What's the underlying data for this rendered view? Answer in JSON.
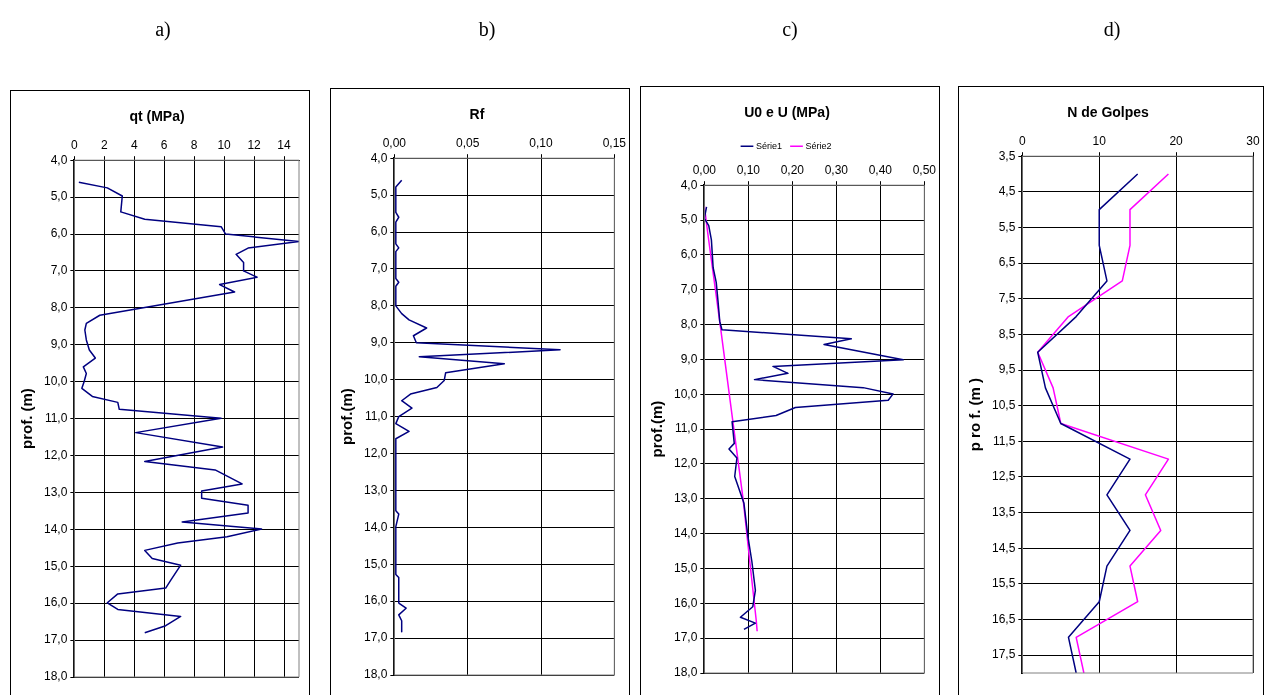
{
  "chart_data": [
    {
      "type": "line",
      "title": "qt (MPa)",
      "ylabel": "prof. (m)",
      "annotations": [
        "a)"
      ],
      "xlim": [
        0,
        15
      ],
      "xticks": [
        0,
        2,
        4,
        6,
        8,
        10,
        12,
        14
      ],
      "ylim": [
        18,
        4
      ],
      "yticks": [
        {
          "value": 4,
          "label": "4,0"
        },
        {
          "value": 5,
          "label": "5,0"
        },
        {
          "value": 6,
          "label": "6,0"
        },
        {
          "value": 7,
          "label": "7,0"
        },
        {
          "value": 8,
          "label": "8,0"
        },
        {
          "value": 9,
          "label": "9,0"
        },
        {
          "value": 10,
          "label": "10,0"
        },
        {
          "value": 11,
          "label": "11,0"
        },
        {
          "value": 12,
          "label": "12,0"
        },
        {
          "value": 13,
          "label": "13,0"
        },
        {
          "value": 14,
          "label": "14,0"
        },
        {
          "value": 15,
          "label": "15,0"
        },
        {
          "value": 16,
          "label": "16,0"
        },
        {
          "value": 17,
          "label": "17,0"
        },
        {
          "value": 18,
          "label": "18,0"
        }
      ],
      "grid": true,
      "marker": "none",
      "series": [
        {
          "color": "#000080",
          "x": [
            0.3,
            2.2,
            3.2,
            3.1,
            4.7,
            9.8,
            10.1,
            15.0,
            11.6,
            10.8,
            11.3,
            11.3,
            12.2,
            9.7,
            10.7,
            1.7,
            0.8,
            0.7,
            0.8,
            1.0,
            1.4,
            0.6,
            0.8,
            0.65,
            0.5,
            1.2,
            2.9,
            3.0,
            9.8,
            4.1,
            9.9,
            4.7,
            9.4,
            11.2,
            8.5,
            8.5,
            11.6,
            11.6,
            7.2,
            12.5,
            10.2,
            6.9,
            4.7,
            5.2,
            7.1,
            6.45,
            6.1,
            2.9,
            2.2,
            2.9,
            7.1,
            6.1,
            4.7
          ],
          "values": [
            4.6,
            4.75,
            4.97,
            5.4,
            5.6,
            5.8,
            6.0,
            6.2,
            6.38,
            6.55,
            6.77,
            7.0,
            7.17,
            7.37,
            7.57,
            8.2,
            8.42,
            8.6,
            8.87,
            9.14,
            9.36,
            9.6,
            9.78,
            10.0,
            10.18,
            10.4,
            10.56,
            10.75,
            10.99,
            11.38,
            11.77,
            12.16,
            12.39,
            12.77,
            12.96,
            13.16,
            13.35,
            13.56,
            13.8,
            13.99,
            14.2,
            14.37,
            14.57,
            14.79,
            14.97,
            15.37,
            15.59,
            15.75,
            15.99,
            16.17,
            16.36,
            16.61,
            16.8
          ]
        }
      ]
    },
    {
      "type": "line",
      "title": "Rf",
      "ylabel": "prof.(m)",
      "annotations": [
        "b)"
      ],
      "xlim": [
        0,
        0.15
      ],
      "xticks": [
        {
          "value": 0,
          "label": "0,00"
        },
        {
          "value": 0.05,
          "label": "0,05"
        },
        {
          "value": 0.1,
          "label": "0,10"
        },
        {
          "value": 0.15,
          "label": "0,15"
        }
      ],
      "ylim": [
        18,
        4
      ],
      "yticks": [
        {
          "value": 4,
          "label": "4,0"
        },
        {
          "value": 5,
          "label": "5,0"
        },
        {
          "value": 6,
          "label": "6,0"
        },
        {
          "value": 7,
          "label": "7,0"
        },
        {
          "value": 8,
          "label": "8,0"
        },
        {
          "value": 9,
          "label": "9,0"
        },
        {
          "value": 10,
          "label": "10,0"
        },
        {
          "value": 11,
          "label": "11,0"
        },
        {
          "value": 12,
          "label": "12,0"
        },
        {
          "value": 13,
          "label": "13,0"
        },
        {
          "value": 14,
          "label": "14,0"
        },
        {
          "value": 15,
          "label": "15,0"
        },
        {
          "value": 16,
          "label": "16,0"
        },
        {
          "value": 17,
          "label": "17,0"
        },
        {
          "value": 18,
          "label": "18,0"
        }
      ],
      "grid": true,
      "marker": "none",
      "series": [
        {
          "color": "#000080",
          "x": [
            0.005,
            0.001,
            0.001,
            0.003,
            0.001,
            0.001,
            0.003,
            0.001,
            0.001,
            0.003,
            0.001,
            0.001,
            0.005,
            0.01,
            0.022,
            0.013,
            0.015,
            0.113,
            0.017,
            0.075,
            0.035,
            0.034,
            0.029,
            0.011,
            0.005,
            0.012,
            0.003,
            0.001,
            0.01,
            0.001,
            0.001,
            0.003,
            0.001,
            0.001,
            0.003,
            0.003,
            0.008,
            0.003,
            0.005,
            0.005
          ],
          "values": [
            4.6,
            4.78,
            5.47,
            5.6,
            5.73,
            6.32,
            6.43,
            6.53,
            7.26,
            7.36,
            7.47,
            8.0,
            8.21,
            8.38,
            8.6,
            8.81,
            9.0,
            9.19,
            9.38,
            9.57,
            9.81,
            10.02,
            10.21,
            10.39,
            10.57,
            10.77,
            11.0,
            11.19,
            11.4,
            11.6,
            13.55,
            13.64,
            13.98,
            15.28,
            15.36,
            16.05,
            16.19,
            16.37,
            16.53,
            16.83
          ]
        }
      ]
    },
    {
      "type": "line",
      "title": "U0 e U (MPa)",
      "ylabel": "prof.(m)",
      "annotations": [
        "c)"
      ],
      "legend": "top",
      "xlim": [
        0,
        0.5
      ],
      "xticks": [
        {
          "value": 0,
          "label": "0,00"
        },
        {
          "value": 0.1,
          "label": "0,10"
        },
        {
          "value": 0.2,
          "label": "0,20"
        },
        {
          "value": 0.3,
          "label": "0,30"
        },
        {
          "value": 0.4,
          "label": "0,40"
        },
        {
          "value": 0.5,
          "label": "0,50"
        }
      ],
      "ylim": [
        18,
        4
      ],
      "yticks": [
        {
          "value": 4,
          "label": "4,0"
        },
        {
          "value": 5,
          "label": "5,0"
        },
        {
          "value": 6,
          "label": "6,0"
        },
        {
          "value": 7,
          "label": "7,0"
        },
        {
          "value": 8,
          "label": "8,0"
        },
        {
          "value": 9,
          "label": "9,0"
        },
        {
          "value": 10,
          "label": "10,0"
        },
        {
          "value": 11,
          "label": "11,0"
        },
        {
          "value": 12,
          "label": "12,0"
        },
        {
          "value": 13,
          "label": "13,0"
        },
        {
          "value": 14,
          "label": "14,0"
        },
        {
          "value": 15,
          "label": "15,0"
        },
        {
          "value": 16,
          "label": "16,0"
        },
        {
          "value": 17,
          "label": "17,0"
        },
        {
          "value": 18,
          "label": "18,0"
        }
      ],
      "grid": true,
      "marker": "none",
      "series": [
        {
          "name": "Série1",
          "color": "#000080",
          "x": [
            0.005,
            0.0,
            0.01,
            0.016,
            0.02,
            0.027,
            0.031,
            0.035,
            0.04,
            0.334,
            0.272,
            0.452,
            0.156,
            0.19,
            0.114,
            0.361,
            0.429,
            0.418,
            0.207,
            0.163,
            0.063,
            0.068,
            0.056,
            0.074,
            0.069,
            0.09,
            0.099,
            0.108,
            0.116,
            0.11,
            0.082,
            0.116,
            0.09
          ],
          "values": [
            4.62,
            4.95,
            5.16,
            5.57,
            6.37,
            6.79,
            7.32,
            7.91,
            8.15,
            8.41,
            8.57,
            9.01,
            9.2,
            9.4,
            9.58,
            9.81,
            9.99,
            10.17,
            10.38,
            10.61,
            10.79,
            11.41,
            11.57,
            11.83,
            12.36,
            13.13,
            14.08,
            14.8,
            15.63,
            16.1,
            16.4,
            16.57,
            16.75
          ]
        },
        {
          "name": "Série2",
          "color": "#ff00ff",
          "x": [
            0.0,
            0.008,
            0.038,
            0.065,
            0.088,
            0.105,
            0.118,
            0.12
          ],
          "values": [
            4.6,
            5.4,
            8.2,
            10.8,
            13.0,
            15.0,
            16.5,
            16.8
          ]
        }
      ]
    },
    {
      "type": "line",
      "title": "N de Golpes",
      "ylabel": "p ro f. (m )",
      "annotations": [
        "d)"
      ],
      "xlim": [
        0,
        30
      ],
      "xticks": [
        0,
        10,
        20,
        30
      ],
      "ylim": [
        18,
        3.5
      ],
      "yticks": [
        {
          "value": 3.5,
          "label": "3,5"
        },
        {
          "value": 4.5,
          "label": "4,5"
        },
        {
          "value": 5.5,
          "label": "5,5"
        },
        {
          "value": 6.5,
          "label": "6,5"
        },
        {
          "value": 7.5,
          "label": "7,5"
        },
        {
          "value": 8.5,
          "label": "8,5"
        },
        {
          "value": 9.5,
          "label": "9,5"
        },
        {
          "value": 10.5,
          "label": "10,5"
        },
        {
          "value": 11.5,
          "label": "11,5"
        },
        {
          "value": 12.5,
          "label": "12,5"
        },
        {
          "value": 13.5,
          "label": "13,5"
        },
        {
          "value": 14.5,
          "label": "14,5"
        },
        {
          "value": 15.5,
          "label": "15,5"
        },
        {
          "value": 16.5,
          "label": "16,5"
        },
        {
          "value": 17.5,
          "label": "17,5"
        }
      ],
      "grid": true,
      "marker": "none",
      "series": [
        {
          "color": "#000080",
          "x": [
            15,
            10,
            10,
            11,
            7,
            2,
            3,
            5,
            14,
            11,
            14,
            11,
            10,
            6,
            7
          ],
          "values": [
            4,
            5,
            6,
            7,
            8,
            9,
            10,
            11,
            12,
            13,
            14,
            15,
            16,
            17,
            18
          ]
        },
        {
          "color": "#ff00ff",
          "x": [
            19,
            14,
            14,
            13,
            6,
            2,
            4,
            5,
            19,
            16,
            18,
            14,
            15,
            7,
            8
          ],
          "values": [
            4,
            5,
            6,
            7,
            8,
            9,
            10,
            11,
            12,
            13,
            14,
            15,
            16,
            17,
            18
          ]
        }
      ]
    }
  ]
}
